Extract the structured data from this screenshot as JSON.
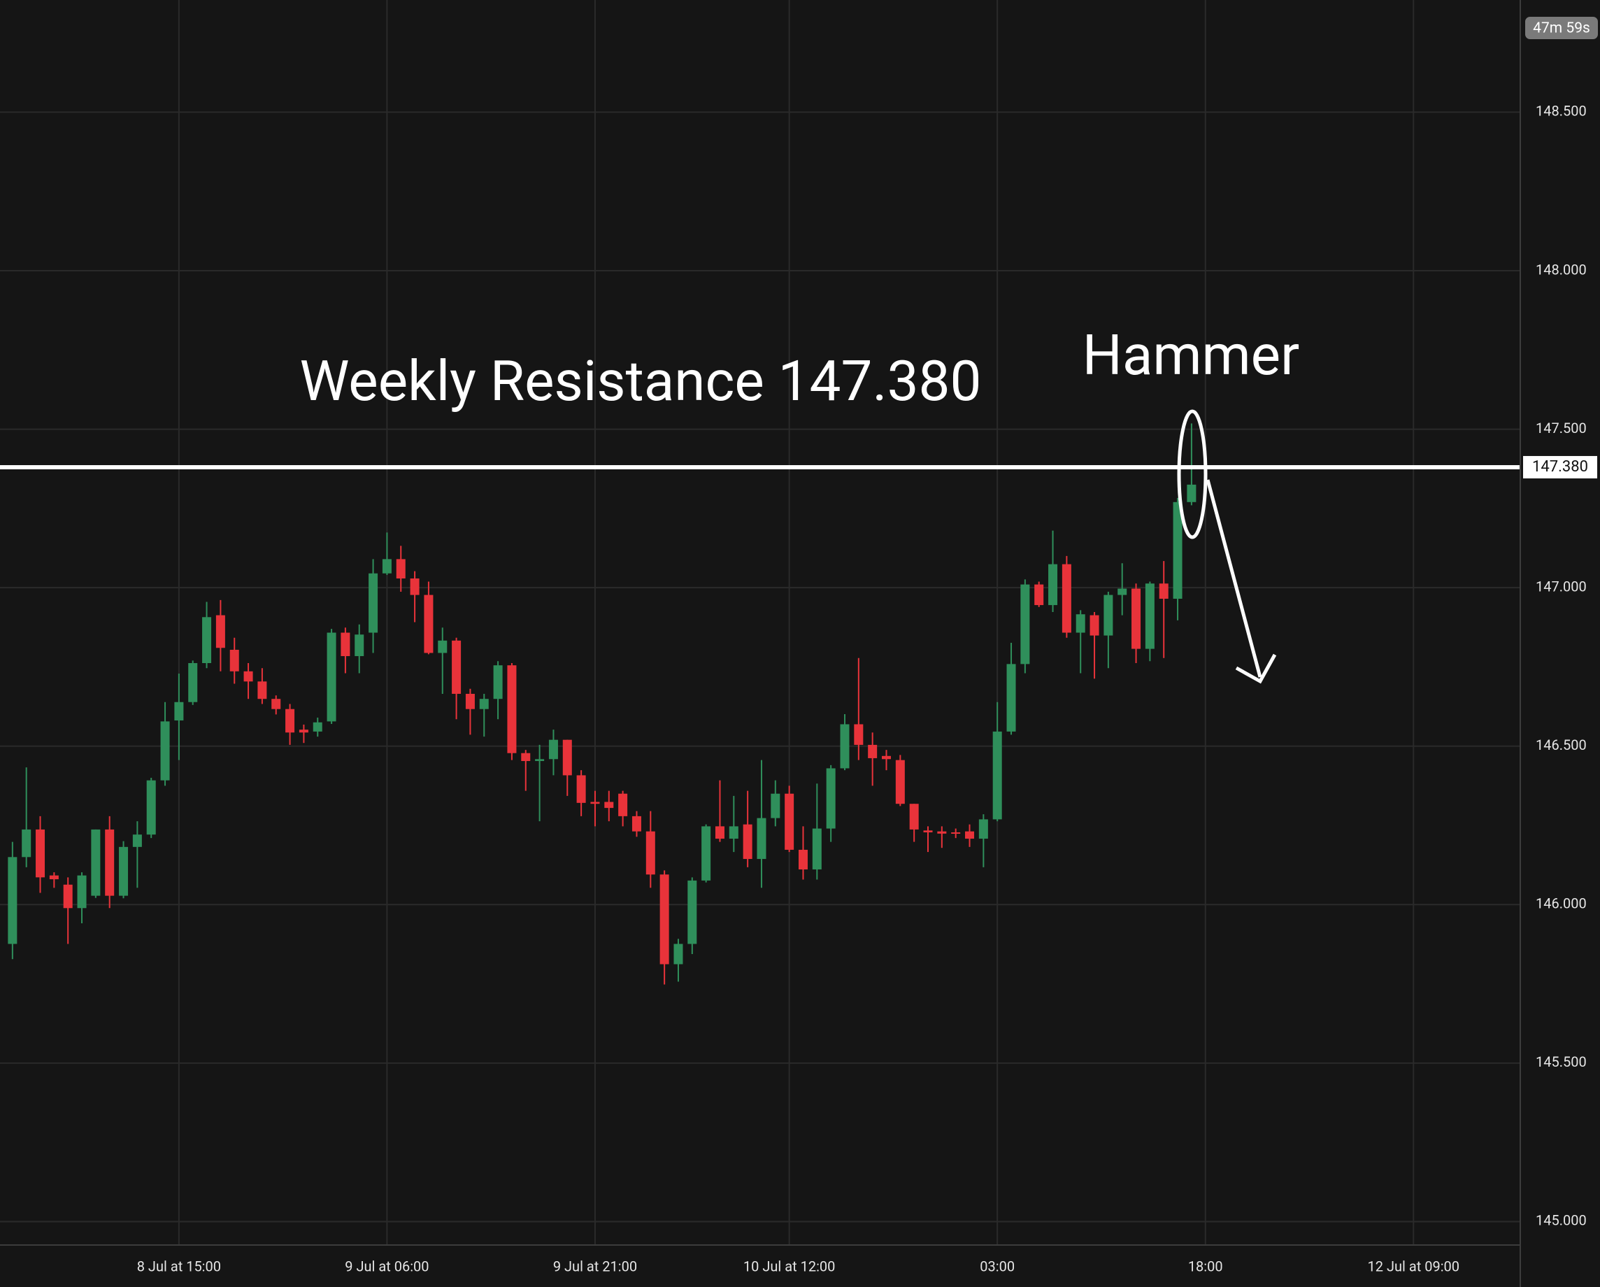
{
  "chart_data": {
    "type": "candlestick",
    "countdown": "47m 59s",
    "up_color": "#2f8f5b",
    "down_color": "#e8333a",
    "grid": true,
    "series": [
      {
        "open": [
          145.876,
          146.15,
          146.237,
          146.092,
          146.063,
          145.989,
          146.028,
          146.237,
          146.028,
          146.182,
          146.221,
          146.392,
          146.581,
          146.639,
          146.762,
          146.913,
          146.804,
          146.736,
          146.704,
          146.649,
          146.617,
          146.552,
          146.546,
          146.578,
          146.858,
          146.784,
          146.858,
          147.045,
          147.09,
          147.029,
          146.977,
          146.794,
          146.833,
          146.665,
          146.617,
          146.649,
          146.755,
          146.478,
          146.453,
          146.459,
          146.52,
          146.408,
          146.324,
          146.324,
          146.35,
          146.279,
          146.231,
          146.095,
          145.812,
          145.876,
          146.076,
          146.247,
          146.208,
          146.253,
          146.144,
          146.273,
          146.35,
          146.173,
          146.111,
          146.24,
          146.43,
          146.569,
          146.504,
          146.469,
          146.456,
          146.318,
          146.234,
          146.231,
          146.228,
          146.231,
          146.208,
          146.269,
          146.546,
          146.759,
          147.01,
          146.945,
          147.074,
          146.858,
          146.913,
          146.849,
          146.977,
          146.997,
          146.807,
          147.013,
          146.965,
          147.27
        ],
        "high": [
          146.198,
          146.433,
          146.279,
          146.102,
          146.086,
          146.102,
          146.237,
          146.279,
          146.2,
          146.263,
          146.4,
          146.639,
          146.729,
          146.77,
          146.955,
          146.961,
          146.842,
          146.762,
          146.746,
          146.66,
          146.633,
          146.568,
          146.59,
          146.87,
          146.874,
          146.884,
          147.09,
          147.174,
          147.132,
          147.052,
          147.019,
          146.874,
          146.842,
          146.681,
          146.665,
          146.768,
          146.762,
          146.488,
          146.504,
          146.552,
          146.52,
          146.424,
          146.359,
          146.359,
          146.359,
          146.295,
          146.295,
          146.108,
          145.892,
          146.086,
          146.253,
          146.392,
          146.343,
          146.359,
          146.456,
          146.392,
          146.375,
          146.247,
          146.382,
          146.44,
          146.601,
          146.778,
          146.543,
          146.488,
          146.472,
          146.318,
          146.247,
          146.247,
          146.24,
          146.253,
          146.285,
          146.639,
          146.826,
          147.026,
          147.019,
          147.18,
          147.1,
          146.929,
          146.923,
          146.987,
          147.077,
          147.013,
          147.019,
          147.084,
          147.283,
          147.518
        ],
        "low": [
          145.828,
          146.118,
          146.037,
          146.053,
          145.876,
          145.941,
          146.021,
          145.989,
          146.02,
          146.053,
          146.21,
          146.375,
          146.456,
          146.63,
          146.746,
          146.736,
          146.697,
          146.649,
          146.633,
          146.6,
          146.504,
          146.51,
          146.53,
          146.57,
          146.73,
          146.73,
          146.794,
          147.04,
          146.987,
          146.891,
          146.79,
          146.665,
          146.585,
          146.536,
          146.53,
          146.585,
          146.456,
          146.359,
          146.263,
          146.408,
          146.343,
          146.279,
          146.247,
          146.263,
          146.247,
          146.214,
          146.053,
          145.748,
          145.757,
          145.844,
          146.07,
          146.198,
          146.166,
          146.118,
          146.053,
          146.247,
          146.166,
          146.079,
          146.079,
          146.198,
          146.424,
          146.456,
          146.375,
          146.424,
          146.311,
          146.198,
          146.166,
          146.179,
          146.21,
          146.182,
          146.118,
          146.263,
          146.536,
          146.73,
          146.939,
          146.923,
          146.842,
          146.73,
          146.713,
          146.746,
          146.913,
          146.762,
          146.768,
          146.778,
          146.897,
          147.26
        ],
        "close": [
          146.15,
          146.237,
          146.086,
          146.08,
          145.989,
          146.092,
          146.237,
          146.028,
          146.182,
          146.221,
          146.392,
          146.578,
          146.639,
          146.762,
          146.907,
          146.81,
          146.736,
          146.704,
          146.649,
          146.617,
          146.543,
          146.543,
          146.575,
          146.858,
          146.784,
          146.852,
          147.045,
          147.09,
          147.029,
          146.977,
          146.794,
          146.833,
          146.665,
          146.617,
          146.649,
          146.755,
          146.478,
          146.453,
          146.459,
          146.52,
          146.408,
          146.321,
          146.318,
          146.305,
          146.279,
          146.231,
          146.095,
          145.812,
          145.876,
          146.076,
          146.247,
          146.208,
          146.247,
          146.144,
          146.273,
          146.35,
          146.173,
          146.111,
          146.24,
          146.43,
          146.569,
          146.504,
          146.462,
          146.459,
          146.318,
          146.237,
          146.228,
          146.224,
          146.224,
          146.208,
          146.269,
          146.546,
          146.759,
          147.01,
          146.945,
          147.074,
          146.858,
          146.916,
          146.849,
          146.977,
          146.997,
          146.807,
          147.013,
          146.965,
          147.27,
          147.325
        ]
      }
    ],
    "xlim": [
      -0.9,
      108.7
    ],
    "xticks": [
      {
        "value": 12,
        "label": "8 Jul at 15:00"
      },
      {
        "value": 27,
        "label": "9 Jul at 06:00"
      },
      {
        "value": 42,
        "label": "9 Jul at 21:00"
      },
      {
        "value": 56,
        "label": "10 Jul at 12:00"
      },
      {
        "value": 71,
        "label": "03:00"
      },
      {
        "value": 86,
        "label": "18:00"
      },
      {
        "value": 101,
        "label": "12 Jul at 09:00"
      }
    ],
    "ylim": [
      144.926,
      148.854
    ],
    "yticks": [
      {
        "value": 145,
        "label": "145.000"
      },
      {
        "value": 145.5,
        "label": "145.500"
      },
      {
        "value": 146,
        "label": "146.000"
      },
      {
        "value": 146.5,
        "label": "146.500"
      },
      {
        "value": 147,
        "label": "147.000"
      },
      {
        "value": 147.5,
        "label": "147.500"
      },
      {
        "value": 148,
        "label": "148.000"
      },
      {
        "value": 148.5,
        "label": "148.500"
      }
    ],
    "resistance": {
      "value": 147.38,
      "label": "147.380",
      "color": "#ffffff"
    },
    "annotations": [
      {
        "text": "Weekly Resistance 147.380"
      },
      {
        "text": "Hammer"
      }
    ]
  }
}
